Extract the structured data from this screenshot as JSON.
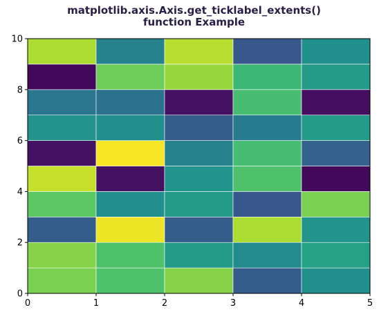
{
  "chart_data": {
    "type": "heatmap",
    "title_lines": [
      "matplotlib.axis.Axis.get_ticklabel_extents()",
      "function Example"
    ],
    "xlabel": "",
    "ylabel": "",
    "xlim": [
      0,
      5
    ],
    "ylim": [
      0,
      10
    ],
    "x_ticks": [
      "0",
      "1",
      "2",
      "3",
      "4",
      "5"
    ],
    "y_ticks": [
      "0",
      "2",
      "4",
      "6",
      "8",
      "10"
    ],
    "colormap": "viridis",
    "vmin": 0,
    "vmax": 1,
    "grid": false,
    "values_bottom_to_top": [
      [
        0.8,
        0.72,
        0.82,
        0.3,
        0.5
      ],
      [
        0.82,
        0.72,
        0.55,
        0.48,
        0.58
      ],
      [
        0.3,
        0.98,
        0.3,
        0.88,
        0.52
      ],
      [
        0.75,
        0.5,
        0.55,
        0.28,
        0.8
      ],
      [
        0.92,
        0.05,
        0.52,
        0.72,
        0.02
      ],
      [
        0.05,
        0.99,
        0.45,
        0.7,
        0.32
      ],
      [
        0.52,
        0.5,
        0.3,
        0.42,
        0.55
      ],
      [
        0.4,
        0.38,
        0.05,
        0.7,
        0.04
      ],
      [
        0.02,
        0.78,
        0.85,
        0.68,
        0.55
      ],
      [
        0.88,
        0.45,
        0.9,
        0.28,
        0.5
      ]
    ],
    "colors": {
      "title": "#2a1e46",
      "axes": "#000000"
    }
  }
}
